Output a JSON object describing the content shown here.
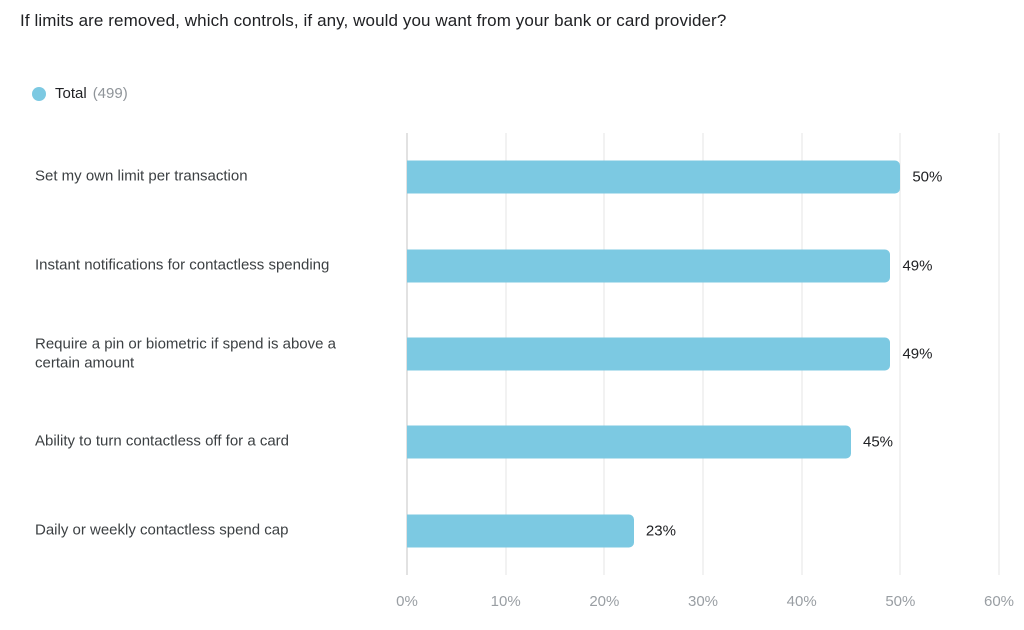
{
  "title": "If limits are removed, which controls, if any, would you want from your bank or card provider?",
  "legend": {
    "label": "Total",
    "count": "(499)"
  },
  "colors": {
    "bar": "#7CC9E2",
    "grid": "#E4E4E4",
    "axis_line": "#C6C6C6",
    "title_text": "#202124",
    "category_text": "#3C4043",
    "value_text": "#202124",
    "tick_text": "#999EA3",
    "legend_count_text": "#8F9499"
  },
  "chart_data": {
    "type": "bar",
    "orientation": "horizontal",
    "title": "If limits are removed, which controls, if any, would you want from your bank or card provider?",
    "series_name": "Total (499)",
    "categories": [
      "Set my own limit per transaction",
      "Instant notifications for contactless spending",
      "Require a pin or biometric if spend is above a certain amount",
      "Ability to turn contactless off for a card",
      "Daily or weekly contactless spend cap"
    ],
    "values": [
      50,
      49,
      49,
      45,
      23
    ],
    "value_labels": [
      "50%",
      "49%",
      "49%",
      "45%",
      "23%"
    ],
    "xlabel": "",
    "ylabel": "",
    "xlim": [
      0,
      60
    ],
    "x_tick_values": [
      0,
      10,
      20,
      30,
      40,
      50,
      60
    ],
    "x_tick_labels": [
      "0%",
      "10%",
      "20%",
      "30%",
      "40%",
      "50%",
      "60%"
    ],
    "grid": true,
    "legend_position": "top-left"
  }
}
